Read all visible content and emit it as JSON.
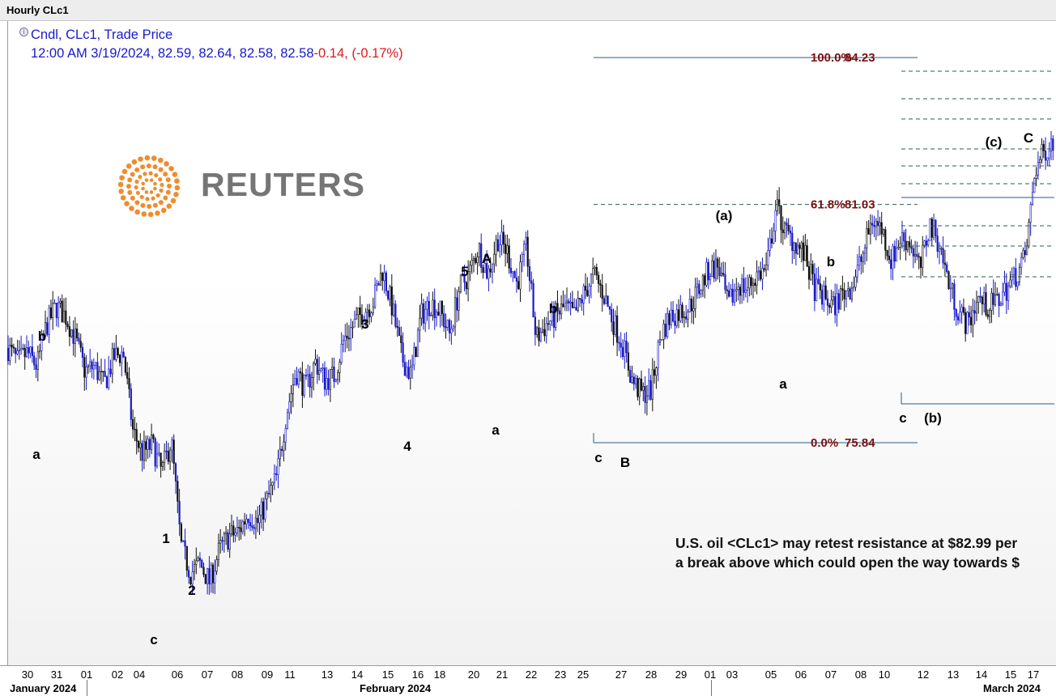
{
  "window": {
    "title": "Hourly CLc1"
  },
  "legend": {
    "line1": "Cndl, CLc1, Trade Price",
    "line2_values": "12:00 AM 3/19/2024, 82.59, 82.64, 82.58, 82.58",
    "line2_change": "-0.14, (-0.17%)"
  },
  "logo": {
    "text": "REUTERS",
    "color": "#ef8c2e"
  },
  "note": {
    "line1": "U.S. oil <CLc1> may retest resistance at $82.99 per",
    "line2": "a break above which could open the way towards $"
  },
  "colors": {
    "candle": "#1a1acc",
    "candle_alt": "#111111",
    "fib_solid": "#2a5a8a",
    "fib_dashed": "#2e5e4a",
    "fib_label": "#7a1010"
  },
  "chart_data": {
    "type": "candlestick",
    "instrument": "CLc1",
    "interval": "Hourly",
    "x_ticks": [
      "30",
      "31",
      "01",
      "02",
      "04",
      "06",
      "07",
      "08",
      "09",
      "11",
      "13",
      "14",
      "15",
      "16",
      "18",
      "20",
      "21",
      "22",
      "23",
      "25",
      "27",
      "28",
      "29",
      "01",
      "03",
      "05",
      "06",
      "07",
      "08",
      "10",
      "12",
      "13",
      "14",
      "15",
      "17"
    ],
    "months": [
      "January 2024",
      "February 2024",
      "March 2024"
    ],
    "price_path": [
      [
        0,
        77.9
      ],
      [
        1,
        77.6
      ],
      [
        2,
        77.8
      ],
      [
        3,
        77.5
      ],
      [
        4,
        78.4
      ],
      [
        5,
        78.8
      ],
      [
        6,
        78.6
      ],
      [
        7,
        78.1
      ],
      [
        8,
        77.4
      ],
      [
        9,
        77.5
      ],
      [
        10,
        77.1
      ],
      [
        11,
        77.7
      ],
      [
        12,
        77.8
      ],
      [
        13,
        76.1
      ],
      [
        14,
        75.6
      ],
      [
        15,
        75.8
      ],
      [
        16,
        75.2
      ],
      [
        17,
        75.9
      ],
      [
        18,
        73.6
      ],
      [
        19,
        73.0
      ],
      [
        20,
        73.2
      ],
      [
        21,
        72.8
      ],
      [
        22,
        73.5
      ],
      [
        23,
        73.8
      ],
      [
        24,
        73.9
      ],
      [
        25,
        74.3
      ],
      [
        26,
        74.1
      ],
      [
        27,
        74.6
      ],
      [
        28,
        75.1
      ],
      [
        29,
        76.5
      ],
      [
        30,
        77.4
      ],
      [
        31,
        77.0
      ],
      [
        32,
        77.6
      ],
      [
        33,
        77.2
      ],
      [
        34,
        77.3
      ],
      [
        35,
        78.1
      ],
      [
        36,
        78.4
      ],
      [
        37,
        78.7
      ],
      [
        38,
        78.9
      ],
      [
        39,
        79.6
      ],
      [
        40,
        78.8
      ],
      [
        41,
        77.7
      ],
      [
        42,
        77.3
      ],
      [
        43,
        78.6
      ],
      [
        44,
        78.9
      ],
      [
        45,
        78.7
      ],
      [
        46,
        78.2
      ],
      [
        47,
        79.2
      ],
      [
        48,
        79.5
      ],
      [
        49,
        80.1
      ],
      [
        50,
        79.5
      ],
      [
        51,
        80.3
      ],
      [
        52,
        80.0
      ],
      [
        53,
        79.3
      ],
      [
        54,
        80.1
      ],
      [
        55,
        78.1
      ],
      [
        56,
        78.4
      ],
      [
        57,
        78.6
      ],
      [
        58,
        78.8
      ],
      [
        59,
        78.6
      ],
      [
        60,
        79.1
      ],
      [
        61,
        79.5
      ],
      [
        62,
        79.1
      ],
      [
        63,
        78.5
      ],
      [
        64,
        78.0
      ],
      [
        65,
        77.2
      ],
      [
        66,
        76.9
      ],
      [
        67,
        77.0
      ],
      [
        68,
        78.2
      ],
      [
        69,
        78.6
      ],
      [
        70,
        78.7
      ],
      [
        71,
        78.8
      ],
      [
        72,
        79.2
      ],
      [
        73,
        79.6
      ],
      [
        74,
        79.7
      ],
      [
        75,
        78.8
      ],
      [
        76,
        79.3
      ],
      [
        77,
        79.2
      ],
      [
        78,
        79.5
      ],
      [
        79,
        79.6
      ],
      [
        80,
        81.0
      ],
      [
        81,
        80.4
      ],
      [
        82,
        80.2
      ],
      [
        83,
        79.9
      ],
      [
        84,
        79.2
      ],
      [
        85,
        79.0
      ],
      [
        86,
        78.8
      ],
      [
        87,
        79.1
      ],
      [
        88,
        79.3
      ],
      [
        89,
        79.9
      ],
      [
        90,
        80.7
      ],
      [
        91,
        80.5
      ],
      [
        92,
        79.8
      ],
      [
        93,
        80.3
      ],
      [
        94,
        80.2
      ],
      [
        95,
        79.6
      ],
      [
        96,
        80.6
      ],
      [
        97,
        80.2
      ],
      [
        98,
        79.3
      ],
      [
        99,
        78.7
      ],
      [
        100,
        78.4
      ],
      [
        101,
        79.0
      ],
      [
        102,
        78.8
      ],
      [
        103,
        78.9
      ],
      [
        104,
        79.2
      ],
      [
        105,
        79.5
      ],
      [
        106,
        79.9
      ],
      [
        107,
        81.8
      ],
      [
        108,
        82.2
      ],
      [
        109,
        82.5
      ]
    ],
    "fibonacci": [
      {
        "label": "100.0%",
        "value": 84.23
      },
      {
        "label": "61.8%",
        "value": 81.03
      },
      {
        "label": "0.0%",
        "value": 75.84
      }
    ],
    "annotations": [
      "a",
      "b",
      "c",
      "1",
      "2",
      "3",
      "4",
      "5",
      "A",
      "a",
      "b",
      "c",
      "B",
      "(a)",
      "a",
      "b",
      "c",
      "(b)",
      "(c)",
      "C"
    ]
  }
}
